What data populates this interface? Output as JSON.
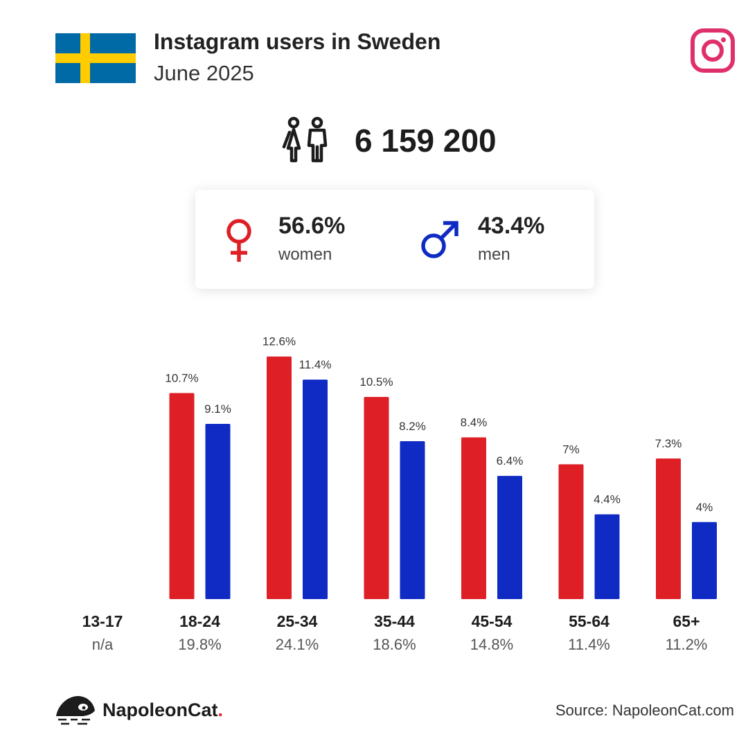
{
  "header": {
    "title": "Instagram users in Sweden",
    "subtitle": "June 2025"
  },
  "colors": {
    "women": "#de1f26",
    "men": "#0f2bc4",
    "flag_blue": "#006aa7",
    "flag_yellow": "#fecc00",
    "instagram": "#e0306a"
  },
  "icons": {
    "flag": "sweden-flag-icon",
    "instagram": "instagram-icon",
    "users": "users-icon",
    "female": "female-symbol-icon",
    "male": "male-symbol-icon",
    "brand": "napoleoncat-logo-icon"
  },
  "total_users": "6 159 200",
  "gender": {
    "women_pct": "56.6%",
    "women_label": "women",
    "men_pct": "43.4%",
    "men_label": "men"
  },
  "chart_data": {
    "type": "bar",
    "categories": [
      "13-17",
      "18-24",
      "25-34",
      "35-44",
      "45-54",
      "55-64",
      "65+"
    ],
    "category_totals": [
      "n/a",
      "19.8%",
      "24.1%",
      "18.6%",
      "14.8%",
      "11.4%",
      "11.2%"
    ],
    "series": [
      {
        "name": "women",
        "values": [
          null,
          10.7,
          12.6,
          10.5,
          8.4,
          7,
          7.3
        ],
        "labels": [
          "",
          "10.7%",
          "12.6%",
          "10.5%",
          "8.4%",
          "7%",
          "7.3%"
        ]
      },
      {
        "name": "men",
        "values": [
          null,
          9.1,
          11.4,
          8.2,
          6.4,
          4.4,
          4
        ],
        "labels": [
          "",
          "9.1%",
          "11.4%",
          "8.2%",
          "6.4%",
          "4.4%",
          "4%"
        ]
      }
    ],
    "grid": false,
    "legend": "none"
  },
  "footer": {
    "brand_name": "NapoleonCat",
    "brand_dot": ".",
    "source": "Source: NapoleonCat.com"
  }
}
